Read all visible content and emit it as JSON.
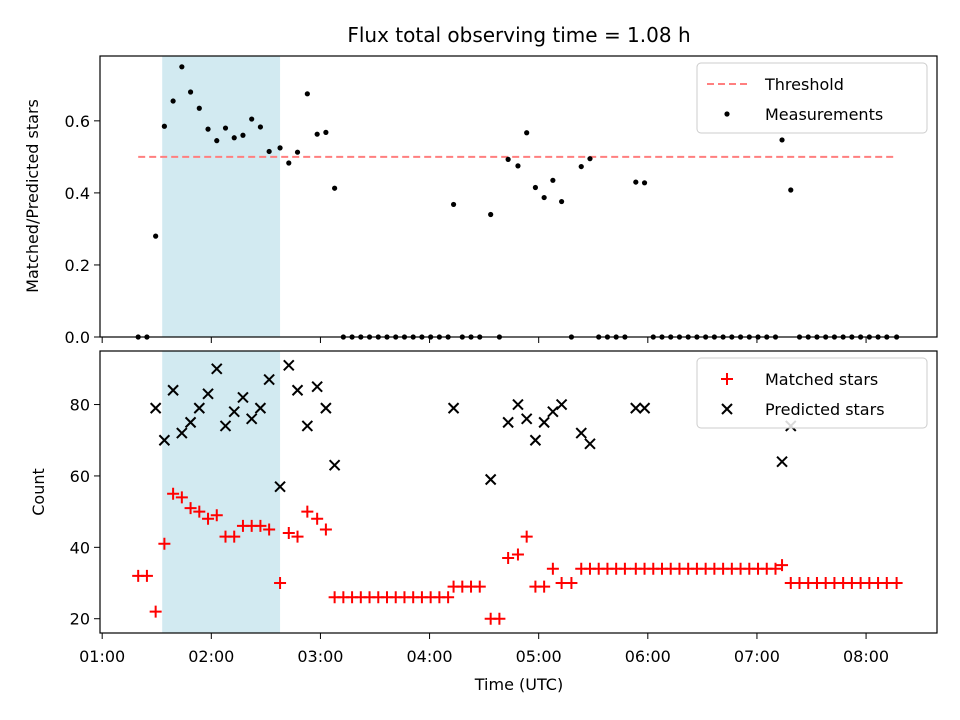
{
  "chart_data": {
    "type": "scatter",
    "title": "Flux total observing time = 1.08 h",
    "xlabel": "Time (UTC)",
    "x_tick_labels": [
      "01:00",
      "02:00",
      "03:00",
      "04:00",
      "05:00",
      "06:00",
      "07:00",
      "08:00"
    ],
    "x_tick_hours": [
      1,
      2,
      3,
      4,
      5,
      6,
      7,
      8
    ],
    "xlim_hours": [
      0.98,
      8.65
    ],
    "highlight_span_hours": [
      1.55,
      2.63
    ],
    "highlight_color": "#add8e6",
    "panels": [
      {
        "ylabel": "Matched/Predicted stars",
        "ylim": [
          0,
          0.78
        ],
        "y_ticks": [
          0,
          0.2,
          0.4,
          0.6
        ],
        "y_tick_labels": [
          "0.0",
          "0.2",
          "0.4",
          "0.6"
        ],
        "threshold": {
          "name": "Threshold",
          "value": 0.5,
          "x_range": [
            1.33,
            8.28
          ],
          "color": "#ff7f7f"
        },
        "legend": [
          "Threshold",
          "Measurements"
        ],
        "series": [
          {
            "name": "Measurements",
            "marker": "dot",
            "color": "#000000",
            "points": [
              [
                1.33,
                0.0
              ],
              [
                1.41,
                0.0
              ],
              [
                1.49,
                0.28
              ],
              [
                1.57,
                0.585
              ],
              [
                1.65,
                0.655
              ],
              [
                1.73,
                0.75
              ],
              [
                1.81,
                0.68
              ],
              [
                1.89,
                0.635
              ],
              [
                1.97,
                0.577
              ],
              [
                2.05,
                0.545
              ],
              [
                2.13,
                0.58
              ],
              [
                2.21,
                0.553
              ],
              [
                2.29,
                0.56
              ],
              [
                2.37,
                0.605
              ],
              [
                2.45,
                0.583
              ],
              [
                2.53,
                0.515
              ],
              [
                2.63,
                0.525
              ],
              [
                2.71,
                0.483
              ],
              [
                2.79,
                0.513
              ],
              [
                2.88,
                0.675
              ],
              [
                2.97,
                0.563
              ],
              [
                3.05,
                0.568
              ],
              [
                3.13,
                0.413
              ],
              [
                3.21,
                0.0
              ],
              [
                3.29,
                0.0
              ],
              [
                3.37,
                0.0
              ],
              [
                3.45,
                0.0
              ],
              [
                3.53,
                0.0
              ],
              [
                3.61,
                0.0
              ],
              [
                3.69,
                0.0
              ],
              [
                3.77,
                0.0
              ],
              [
                3.85,
                0.0
              ],
              [
                3.93,
                0.0
              ],
              [
                4.01,
                0.0
              ],
              [
                4.09,
                0.0
              ],
              [
                4.17,
                0.0
              ],
              [
                4.22,
                0.368
              ],
              [
                4.3,
                0.0
              ],
              [
                4.38,
                0.0
              ],
              [
                4.46,
                0.0
              ],
              [
                4.56,
                0.34
              ],
              [
                4.64,
                0.0
              ],
              [
                4.72,
                0.493
              ],
              [
                4.81,
                0.475
              ],
              [
                4.89,
                0.567
              ],
              [
                4.97,
                0.415
              ],
              [
                5.05,
                0.387
              ],
              [
                5.13,
                0.435
              ],
              [
                5.21,
                0.376
              ],
              [
                5.3,
                0.0
              ],
              [
                5.39,
                0.473
              ],
              [
                5.47,
                0.495
              ],
              [
                5.55,
                0.0
              ],
              [
                5.63,
                0.0
              ],
              [
                5.71,
                0.0
              ],
              [
                5.79,
                0.0
              ],
              [
                5.89,
                0.43
              ],
              [
                5.97,
                0.428
              ],
              [
                6.05,
                0.0
              ],
              [
                6.13,
                0.0
              ],
              [
                6.21,
                0.0
              ],
              [
                6.29,
                0.0
              ],
              [
                6.37,
                0.0
              ],
              [
                6.45,
                0.0
              ],
              [
                6.53,
                0.0
              ],
              [
                6.61,
                0.0
              ],
              [
                6.69,
                0.0
              ],
              [
                6.77,
                0.0
              ],
              [
                6.85,
                0.0
              ],
              [
                6.93,
                0.0
              ],
              [
                7.01,
                0.0
              ],
              [
                7.09,
                0.0
              ],
              [
                7.17,
                0.0
              ],
              [
                7.23,
                0.547
              ],
              [
                7.31,
                0.408
              ],
              [
                7.39,
                0.0
              ],
              [
                7.47,
                0.0
              ],
              [
                7.55,
                0.0
              ],
              [
                7.63,
                0.0
              ],
              [
                7.71,
                0.0
              ],
              [
                7.79,
                0.0
              ],
              [
                7.87,
                0.0
              ],
              [
                7.95,
                0.0
              ],
              [
                8.03,
                0.0
              ],
              [
                8.11,
                0.0
              ],
              [
                8.19,
                0.0
              ],
              [
                8.28,
                0.0
              ]
            ]
          }
        ]
      },
      {
        "ylabel": "Count",
        "ylim": [
          16,
          95
        ],
        "y_ticks": [
          20,
          40,
          60,
          80
        ],
        "y_tick_labels": [
          "20",
          "40",
          "60",
          "80"
        ],
        "legend": [
          "Matched stars",
          "Predicted stars"
        ],
        "series": [
          {
            "name": "Matched stars",
            "marker": "plus",
            "color": "#ff0000",
            "points": [
              [
                1.33,
                32
              ],
              [
                1.41,
                32
              ],
              [
                1.49,
                22
              ],
              [
                1.57,
                41
              ],
              [
                1.65,
                55
              ],
              [
                1.73,
                54
              ],
              [
                1.81,
                51
              ],
              [
                1.89,
                50
              ],
              [
                1.97,
                48
              ],
              [
                2.05,
                49
              ],
              [
                2.13,
                43
              ],
              [
                2.21,
                43
              ],
              [
                2.29,
                46
              ],
              [
                2.37,
                46
              ],
              [
                2.45,
                46
              ],
              [
                2.53,
                45
              ],
              [
                2.63,
                30
              ],
              [
                2.71,
                44
              ],
              [
                2.79,
                43
              ],
              [
                2.88,
                50
              ],
              [
                2.97,
                48
              ],
              [
                3.05,
                45
              ],
              [
                3.13,
                26
              ],
              [
                3.21,
                26
              ],
              [
                3.29,
                26
              ],
              [
                3.37,
                26
              ],
              [
                3.45,
                26
              ],
              [
                3.53,
                26
              ],
              [
                3.61,
                26
              ],
              [
                3.69,
                26
              ],
              [
                3.77,
                26
              ],
              [
                3.85,
                26
              ],
              [
                3.93,
                26
              ],
              [
                4.01,
                26
              ],
              [
                4.09,
                26
              ],
              [
                4.17,
                26
              ],
              [
                4.22,
                29
              ],
              [
                4.3,
                29
              ],
              [
                4.38,
                29
              ],
              [
                4.46,
                29
              ],
              [
                4.56,
                20
              ],
              [
                4.64,
                20
              ],
              [
                4.72,
                37
              ],
              [
                4.81,
                38
              ],
              [
                4.89,
                43
              ],
              [
                4.97,
                29
              ],
              [
                5.05,
                29
              ],
              [
                5.13,
                34
              ],
              [
                5.21,
                30
              ],
              [
                5.3,
                30
              ],
              [
                5.39,
                34
              ],
              [
                5.47,
                34
              ],
              [
                5.55,
                34
              ],
              [
                5.63,
                34
              ],
              [
                5.71,
                34
              ],
              [
                5.79,
                34
              ],
              [
                5.89,
                34
              ],
              [
                5.97,
                34
              ],
              [
                6.05,
                34
              ],
              [
                6.13,
                34
              ],
              [
                6.21,
                34
              ],
              [
                6.29,
                34
              ],
              [
                6.37,
                34
              ],
              [
                6.45,
                34
              ],
              [
                6.53,
                34
              ],
              [
                6.61,
                34
              ],
              [
                6.69,
                34
              ],
              [
                6.77,
                34
              ],
              [
                6.85,
                34
              ],
              [
                6.93,
                34
              ],
              [
                7.01,
                34
              ],
              [
                7.09,
                34
              ],
              [
                7.17,
                34
              ],
              [
                7.23,
                35
              ],
              [
                7.31,
                30
              ],
              [
                7.39,
                30
              ],
              [
                7.47,
                30
              ],
              [
                7.55,
                30
              ],
              [
                7.63,
                30
              ],
              [
                7.71,
                30
              ],
              [
                7.79,
                30
              ],
              [
                7.87,
                30
              ],
              [
                7.95,
                30
              ],
              [
                8.03,
                30
              ],
              [
                8.11,
                30
              ],
              [
                8.19,
                30
              ],
              [
                8.28,
                30
              ]
            ]
          },
          {
            "name": "Predicted stars",
            "marker": "x",
            "color": "#000000",
            "points": [
              [
                1.49,
                79
              ],
              [
                1.57,
                70
              ],
              [
                1.65,
                84
              ],
              [
                1.73,
                72
              ],
              [
                1.81,
                75
              ],
              [
                1.89,
                79
              ],
              [
                1.97,
                83
              ],
              [
                2.05,
                90
              ],
              [
                2.13,
                74
              ],
              [
                2.21,
                78
              ],
              [
                2.29,
                82
              ],
              [
                2.37,
                76
              ],
              [
                2.45,
                79
              ],
              [
                2.53,
                87
              ],
              [
                2.63,
                57
              ],
              [
                2.71,
                91
              ],
              [
                2.79,
                84
              ],
              [
                2.88,
                74
              ],
              [
                2.97,
                85
              ],
              [
                3.05,
                79
              ],
              [
                3.13,
                63
              ],
              [
                4.22,
                79
              ],
              [
                4.56,
                59
              ],
              [
                4.72,
                75
              ],
              [
                4.81,
                80
              ],
              [
                4.89,
                76
              ],
              [
                4.97,
                70
              ],
              [
                5.05,
                75
              ],
              [
                5.13,
                78
              ],
              [
                5.21,
                80
              ],
              [
                5.39,
                72
              ],
              [
                5.47,
                69
              ],
              [
                5.89,
                79
              ],
              [
                5.97,
                79
              ],
              [
                7.23,
                64
              ],
              [
                7.31,
                74
              ]
            ]
          }
        ]
      }
    ]
  }
}
